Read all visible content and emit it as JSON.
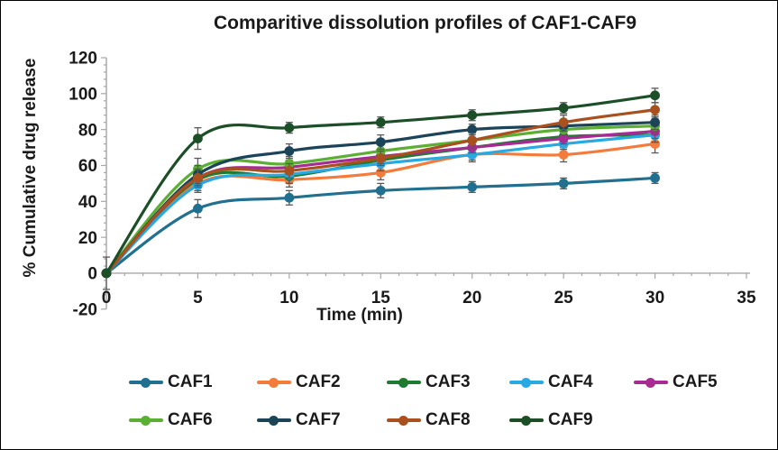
{
  "chart_data": {
    "type": "line",
    "title": "Comparitive dissolution profiles of CAF1-CAF9",
    "xlabel": "Time (min)",
    "ylabel": "% Cumulative drug release",
    "x": [
      0,
      5,
      10,
      15,
      20,
      25,
      30
    ],
    "xlim": [
      0,
      35
    ],
    "ylim": [
      -20,
      120
    ],
    "x_ticks": [
      0,
      5,
      10,
      15,
      20,
      25,
      30,
      35
    ],
    "y_ticks": [
      -20,
      0,
      20,
      40,
      60,
      80,
      100,
      120
    ],
    "x_minor_step": 1,
    "y_minor_step": 4,
    "grid": false,
    "smooth": true,
    "marker": "circle",
    "legend_position": "bottom",
    "legend_rows": [
      [
        "CAF1",
        "CAF2",
        "CAF3",
        "CAF4",
        "CAF5"
      ],
      [
        "CAF6",
        "CAF7",
        "CAF8",
        "CAF9"
      ]
    ],
    "series": [
      {
        "name": "CAF1",
        "color": "#21708F",
        "values": [
          0,
          36,
          42,
          46,
          48,
          50,
          53
        ],
        "errors": [
          9,
          5,
          4,
          4,
          3,
          3,
          3
        ]
      },
      {
        "name": "CAF2",
        "color": "#F47B3B",
        "values": [
          0,
          50,
          52,
          56,
          66,
          66,
          72
        ],
        "errors": [
          0,
          4,
          4,
          4,
          4,
          4,
          5
        ]
      },
      {
        "name": "CAF3",
        "color": "#1E7B31",
        "values": [
          0,
          52,
          54,
          63,
          70,
          76,
          77
        ],
        "errors": [
          0,
          4,
          4,
          3,
          4,
          3,
          4
        ]
      },
      {
        "name": "CAF4",
        "color": "#29A9E1",
        "values": [
          0,
          49,
          55,
          61,
          66,
          72,
          77
        ],
        "errors": [
          0,
          4,
          5,
          4,
          3,
          3,
          4
        ]
      },
      {
        "name": "CAF5",
        "color": "#A62B92",
        "values": [
          0,
          53,
          59,
          65,
          70,
          75,
          79
        ],
        "errors": [
          0,
          4,
          4,
          4,
          3,
          3,
          4
        ]
      },
      {
        "name": "CAF6",
        "color": "#5BB033",
        "values": [
          0,
          58,
          61,
          68,
          74,
          80,
          82
        ],
        "errors": [
          0,
          6,
          4,
          4,
          4,
          3,
          4
        ]
      },
      {
        "name": "CAF7",
        "color": "#1B4459",
        "values": [
          0,
          55,
          68,
          73,
          80,
          82,
          84
        ],
        "errors": [
          0,
          5,
          4,
          4,
          3,
          3,
          4
        ]
      },
      {
        "name": "CAF8",
        "color": "#A8511E",
        "values": [
          0,
          53,
          57,
          64,
          74,
          84,
          91
        ],
        "errors": [
          0,
          5,
          4,
          4,
          4,
          4,
          4
        ]
      },
      {
        "name": "CAF9",
        "color": "#1C4F27",
        "values": [
          0,
          75,
          81,
          84,
          88,
          92,
          99
        ],
        "errors": [
          0,
          6,
          3,
          3,
          3,
          3,
          4
        ]
      }
    ],
    "colors": {
      "axis": "#A6A6A6",
      "error_bar": "#595959",
      "text": "#1A1A1A"
    }
  }
}
